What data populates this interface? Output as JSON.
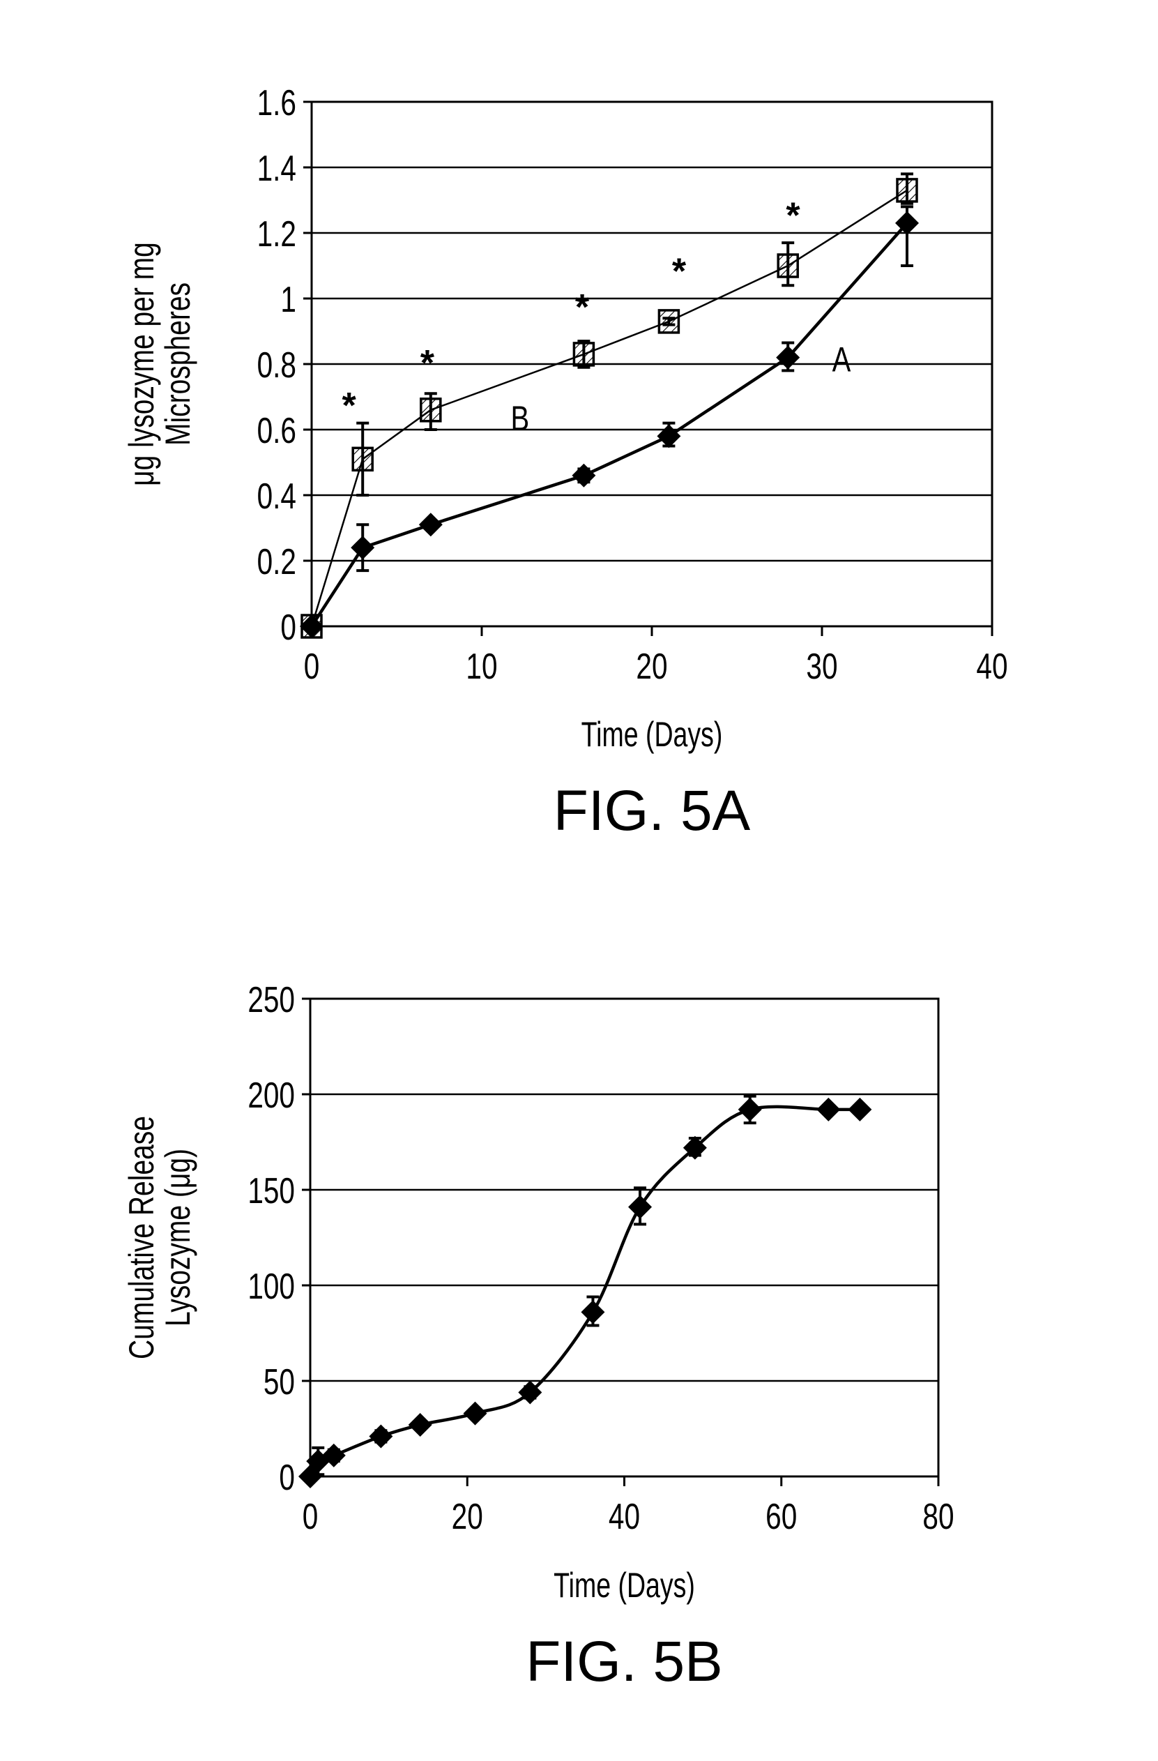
{
  "chart_data": [
    {
      "type": "line",
      "title": "FIG. 5A",
      "xlabel": "Time (Days)",
      "ylabel_lines": [
        "μg lysozyme per mg",
        "Microspheres"
      ],
      "xlim": [
        0,
        40
      ],
      "ylim": [
        0,
        1.6
      ],
      "xticks": [
        "0",
        "10",
        "20",
        "30",
        "40"
      ],
      "yticks": [
        "0",
        "0.2",
        "0.4",
        "0.6",
        "0.8",
        "1",
        "1.2",
        "1.4",
        "1.6"
      ],
      "xtick_values": [
        0,
        10,
        20,
        30,
        40
      ],
      "ytick_values": [
        0,
        0.2,
        0.4,
        0.6,
        0.8,
        1.0,
        1.2,
        1.4,
        1.6
      ],
      "grid": "horizontal",
      "series": [
        {
          "name": "A",
          "marker": "diamond",
          "x": [
            0,
            3,
            7,
            16,
            21,
            28,
            35
          ],
          "y": [
            0,
            0.24,
            0.31,
            0.46,
            0.58,
            0.82,
            1.23
          ],
          "err_low": [
            0,
            0.17,
            0.3,
            0.44,
            0.55,
            0.78,
            1.1
          ],
          "err_high": [
            0,
            0.31,
            0.32,
            0.48,
            0.62,
            0.865,
            1.28
          ],
          "label": "A",
          "label_at": [
            30.6,
            0.82
          ]
        },
        {
          "name": "B",
          "marker": "hatched-square",
          "x": [
            0,
            3,
            7,
            16,
            21,
            28,
            35
          ],
          "y": [
            0,
            0.51,
            0.66,
            0.83,
            0.93,
            1.1,
            1.33
          ],
          "err_low": [
            0,
            0.4,
            0.6,
            0.79,
            0.92,
            1.04,
            1.29
          ],
          "err_high": [
            0,
            0.62,
            0.71,
            0.87,
            0.94,
            1.17,
            1.38
          ],
          "label": "B",
          "label_at": [
            11.7,
            0.64
          ]
        }
      ],
      "annotations": [
        {
          "text": "*",
          "x": 2.2,
          "y": 0.7
        },
        {
          "text": "*",
          "x": 6.8,
          "y": 0.83
        },
        {
          "text": "*",
          "x": 15.9,
          "y": 1.0
        },
        {
          "text": "*",
          "x": 21.6,
          "y": 1.11
        },
        {
          "text": "*",
          "x": 28.3,
          "y": 1.28
        }
      ]
    },
    {
      "type": "line",
      "title": "FIG. 5B",
      "xlabel": "Time (Days)",
      "ylabel_lines": [
        "Cumulative Release",
        "Lysozyme (μg)"
      ],
      "xlim": [
        0,
        80
      ],
      "ylim": [
        0,
        250
      ],
      "xticks": [
        "0",
        "20",
        "40",
        "60",
        "80"
      ],
      "yticks": [
        "0",
        "50",
        "100",
        "150",
        "200",
        "250"
      ],
      "xtick_values": [
        0,
        20,
        40,
        60,
        80
      ],
      "ytick_values": [
        0,
        50,
        100,
        150,
        200,
        250
      ],
      "grid": "horizontal",
      "series": [
        {
          "name": "Cumulative release",
          "marker": "diamond",
          "x": [
            0,
            1,
            3,
            9,
            14,
            21,
            28,
            36,
            42,
            49,
            56,
            66,
            70
          ],
          "y": [
            0,
            8,
            11,
            21,
            27,
            33,
            44,
            86,
            141,
            172,
            192,
            192,
            192
          ],
          "err_low": [
            0,
            1,
            8,
            18,
            26,
            32,
            41,
            79,
            132,
            168,
            185,
            192,
            192
          ],
          "err_high": [
            0,
            15,
            14,
            24,
            28,
            34,
            47,
            94,
            151,
            177,
            199,
            192,
            192
          ]
        }
      ]
    }
  ]
}
